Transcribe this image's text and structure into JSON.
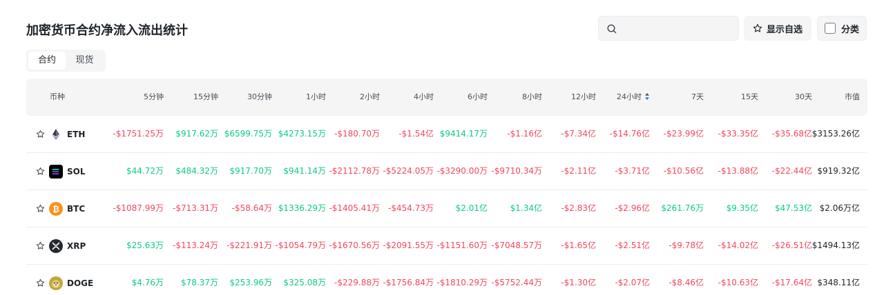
{
  "page": {
    "title": "加密货币合约净流入流出统计"
  },
  "toolbar": {
    "search_placeholder": "",
    "search_value": "",
    "favorites_label": "显示自选",
    "category_label": "分类"
  },
  "tabs": [
    {
      "label": "合约",
      "active": true
    },
    {
      "label": "现货",
      "active": false
    }
  ],
  "table": {
    "headers": [
      "币种",
      "5分钟",
      "15分钟",
      "30分钟",
      "1小时",
      "2小时",
      "4小时",
      "6小时",
      "8小时",
      "12小时",
      "24小时",
      "7天",
      "15天",
      "30天",
      "市值"
    ],
    "sorted_column": "24小时",
    "rows": [
      {
        "symbol": "ETH",
        "icon": "eth-icon",
        "values": [
          "-$1751.25万",
          "$917.62万",
          "$6599.75万",
          "$4273.15万",
          "-$180.70万",
          "-$1.54亿",
          "$9414.17万",
          "-$1.16亿",
          "-$7.34亿",
          "-$14.76亿",
          "-$23.99亿",
          "-$33.35亿",
          "-$35.68亿"
        ],
        "market_cap": "$3153.26亿"
      },
      {
        "symbol": "SOL",
        "icon": "sol-icon",
        "values": [
          "$44.72万",
          "$484.32万",
          "$917.70万",
          "$941.14万",
          "-$2112.78万",
          "-$5224.05万",
          "-$3290.00万",
          "-$9710.34万",
          "-$2.11亿",
          "-$3.71亿",
          "-$10.56亿",
          "-$13.88亿",
          "-$22.44亿"
        ],
        "market_cap": "$919.32亿"
      },
      {
        "symbol": "BTC",
        "icon": "btc-icon",
        "values": [
          "-$1087.99万",
          "-$713.31万",
          "-$58.64万",
          "$1336.29万",
          "-$1405.41万",
          "-$454.73万",
          "$2.01亿",
          "$1.34亿",
          "-$2.83亿",
          "-$2.96亿",
          "$261.76万",
          "$9.35亿",
          "$47.53亿"
        ],
        "market_cap": "$2.06万亿"
      },
      {
        "symbol": "XRP",
        "icon": "xrp-icon",
        "values": [
          "$25.63万",
          "-$113.24万",
          "-$221.91万",
          "-$1054.79万",
          "-$1670.56万",
          "-$2091.55万",
          "-$1151.60万",
          "-$7048.57万",
          "-$1.65亿",
          "-$2.51亿",
          "-$9.78亿",
          "-$14.02亿",
          "-$26.51亿"
        ],
        "market_cap": "$1494.13亿"
      },
      {
        "symbol": "DOGE",
        "icon": "doge-icon",
        "values": [
          "$4.76万",
          "$78.37万",
          "$253.96万",
          "$325.08万",
          "-$229.88万",
          "-$1756.84万",
          "-$1810.29万",
          "-$5752.44万",
          "-$1.30亿",
          "-$2.07亿",
          "-$8.46亿",
          "-$10.63亿",
          "-$17.64亿"
        ],
        "market_cap": "$348.11亿"
      }
    ]
  },
  "colors": {
    "positive": "#0ecb81",
    "negative": "#f6465d",
    "eth": "#3c3c3d",
    "sol": "#000000",
    "btc": "#f7931a",
    "xrp": "#23292f",
    "doge": "#c2a633"
  }
}
